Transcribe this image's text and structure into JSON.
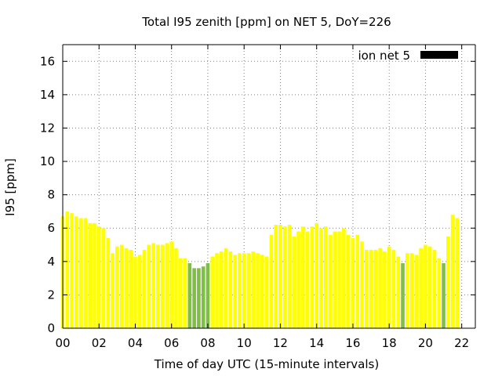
{
  "chart_data": {
    "type": "bar",
    "title": "Total I95 zenith [ppm] on NET 5, DoY=226",
    "xlabel": "Time of day UTC (15-minute intervals)",
    "ylabel": "I95 [ppm]",
    "xlim": [
      0,
      22.75
    ],
    "ylim": [
      0,
      17
    ],
    "x_ticks": [
      {
        "value": 0,
        "label": "00"
      },
      {
        "value": 2,
        "label": "02"
      },
      {
        "value": 4,
        "label": "04"
      },
      {
        "value": 6,
        "label": "06"
      },
      {
        "value": 8,
        "label": "08"
      },
      {
        "value": 10,
        "label": "10"
      },
      {
        "value": 12,
        "label": "12"
      },
      {
        "value": 14,
        "label": "14"
      },
      {
        "value": 16,
        "label": "16"
      },
      {
        "value": 18,
        "label": "18"
      },
      {
        "value": 20,
        "label": "20"
      },
      {
        "value": 22,
        "label": "22"
      }
    ],
    "y_ticks": [
      {
        "value": 0,
        "label": "0"
      },
      {
        "value": 2,
        "label": "2"
      },
      {
        "value": 4,
        "label": "4"
      },
      {
        "value": 6,
        "label": "6"
      },
      {
        "value": 8,
        "label": "8"
      },
      {
        "value": 10,
        "label": "10"
      },
      {
        "value": 12,
        "label": "12"
      },
      {
        "value": 14,
        "label": "14"
      },
      {
        "value": 16,
        "label": "16"
      }
    ],
    "grid": true,
    "legend": {
      "position": "top-right",
      "label": "ion net 5",
      "color": "#000000"
    },
    "colors": {
      "yellow": "#ffff00",
      "green": "#7fbf44",
      "axis": "#000000",
      "grid": "#808080"
    },
    "series": [
      {
        "values": [
          6.7,
          7.0,
          6.9,
          6.7,
          6.6,
          6.6,
          6.3,
          6.3,
          6.1,
          6.0,
          5.4,
          4.5,
          4.9,
          5.0,
          4.8,
          4.7,
          4.3,
          4.4,
          4.7,
          5.0,
          5.1,
          5.0,
          5.0,
          5.1,
          5.2,
          4.8,
          4.2,
          4.2,
          3.9,
          3.6,
          3.6,
          3.7,
          3.9,
          4.3,
          4.5,
          4.6,
          4.8,
          4.6,
          4.4,
          4.5,
          4.5,
          4.5,
          4.6,
          4.5,
          4.4,
          4.3,
          5.6,
          6.2,
          6.2,
          6.1,
          6.2,
          5.5,
          5.8,
          6.1,
          5.8,
          6.1,
          6.3,
          6.0,
          6.1,
          5.6,
          5.8,
          5.8,
          6.0,
          5.6,
          5.4,
          5.6,
          5.2,
          4.7,
          4.7,
          4.7,
          4.8,
          4.6,
          4.9,
          4.7,
          4.3,
          3.9,
          4.5,
          4.5,
          4.4,
          4.8,
          5.0,
          4.9,
          4.7,
          4.2,
          3.9,
          5.5,
          6.8,
          6.6
        ],
        "colors": [
          "yellow",
          "yellow",
          "yellow",
          "yellow",
          "yellow",
          "yellow",
          "yellow",
          "yellow",
          "yellow",
          "yellow",
          "yellow",
          "yellow",
          "yellow",
          "yellow",
          "yellow",
          "yellow",
          "yellow",
          "yellow",
          "yellow",
          "yellow",
          "yellow",
          "yellow",
          "yellow",
          "yellow",
          "yellow",
          "yellow",
          "yellow",
          "yellow",
          "green",
          "green",
          "green",
          "green",
          "green",
          "yellow",
          "yellow",
          "yellow",
          "yellow",
          "yellow",
          "yellow",
          "yellow",
          "yellow",
          "yellow",
          "yellow",
          "yellow",
          "yellow",
          "yellow",
          "yellow",
          "yellow",
          "yellow",
          "yellow",
          "yellow",
          "yellow",
          "yellow",
          "yellow",
          "yellow",
          "yellow",
          "yellow",
          "yellow",
          "yellow",
          "yellow",
          "yellow",
          "yellow",
          "yellow",
          "yellow",
          "yellow",
          "yellow",
          "yellow",
          "yellow",
          "yellow",
          "yellow",
          "yellow",
          "yellow",
          "yellow",
          "yellow",
          "yellow",
          "green",
          "yellow",
          "yellow",
          "yellow",
          "yellow",
          "yellow",
          "yellow",
          "yellow",
          "yellow",
          "green",
          "yellow",
          "yellow",
          "yellow"
        ]
      }
    ]
  }
}
